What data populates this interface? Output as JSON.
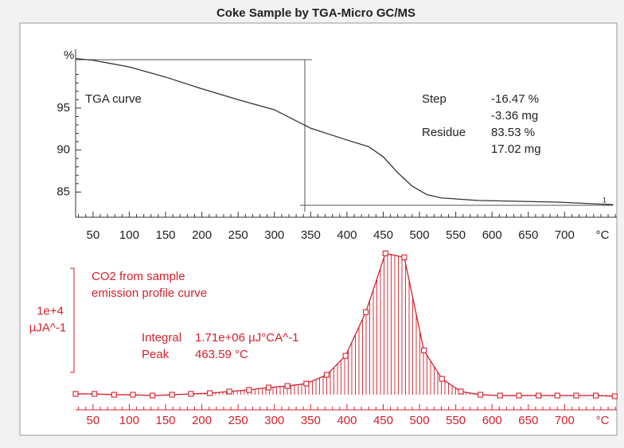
{
  "title": "Coke Sample by TGA-Micro GC/MS",
  "chart_data": [
    {
      "type": "line",
      "y_label": "%",
      "x_label": "°C",
      "x": [
        26,
        50,
        100,
        150,
        200,
        250,
        300,
        350,
        400,
        430,
        450,
        470,
        490,
        510,
        530,
        580,
        690,
        767
      ],
      "series": [
        {
          "name": "TGA curve",
          "color": "#333333",
          "values": [
            100.9,
            100.7,
            99.9,
            98.7,
            97.3,
            96.0,
            94.8,
            92.6,
            91.2,
            90.4,
            89.2,
            87.3,
            85.7,
            84.7,
            84.3,
            84.0,
            83.8,
            83.5
          ]
        }
      ],
      "xlim": [
        26,
        772
      ],
      "ylim": [
        82,
        102
      ],
      "xticks": [
        50,
        100,
        150,
        200,
        250,
        300,
        350,
        400,
        450,
        500,
        550,
        600,
        650,
        700
      ],
      "yticks": [
        85,
        90,
        95
      ],
      "annotations": [
        "Step",
        "-16.47 %",
        "-3.36 mg",
        "Residue",
        "83.53 %",
        "17.02 mg",
        "1"
      ]
    },
    {
      "type": "line",
      "x_label": "°C",
      "markers": "square",
      "hatched_area": true,
      "x": [
        26,
        52,
        79,
        105,
        132,
        159,
        185,
        211,
        238,
        265,
        292,
        318,
        344,
        372,
        398,
        426,
        453,
        479,
        506,
        531,
        557,
        584,
        611,
        637,
        664,
        690,
        716,
        743,
        769
      ],
      "series": [
        {
          "color": "#d3202c",
          "values": [
            80,
            80,
            0,
            0,
            -80,
            0,
            80,
            150,
            310,
            460,
            690,
            840,
            1070,
            1910,
            3740,
            7940,
            13590,
            13210,
            4270,
            1530,
            310,
            0,
            -80,
            -80,
            -80,
            -80,
            -80,
            -80,
            -150
          ]
        }
      ],
      "xlim": [
        26,
        772
      ],
      "ylim": [
        -1450,
        15000
      ],
      "xticks": [
        50,
        100,
        150,
        200,
        250,
        300,
        350,
        400,
        450,
        500,
        550,
        600,
        650,
        700
      ],
      "scale_bar": {
        "value": 10000,
        "label": "1e+4",
        "unit": "µJA^-1"
      },
      "annotations": [
        "CO2 from sample",
        "emission profile curve",
        "Integral",
        "1.71e+06 µJ°CA^-1",
        "Peak",
        "463.59 °C"
      ]
    }
  ]
}
